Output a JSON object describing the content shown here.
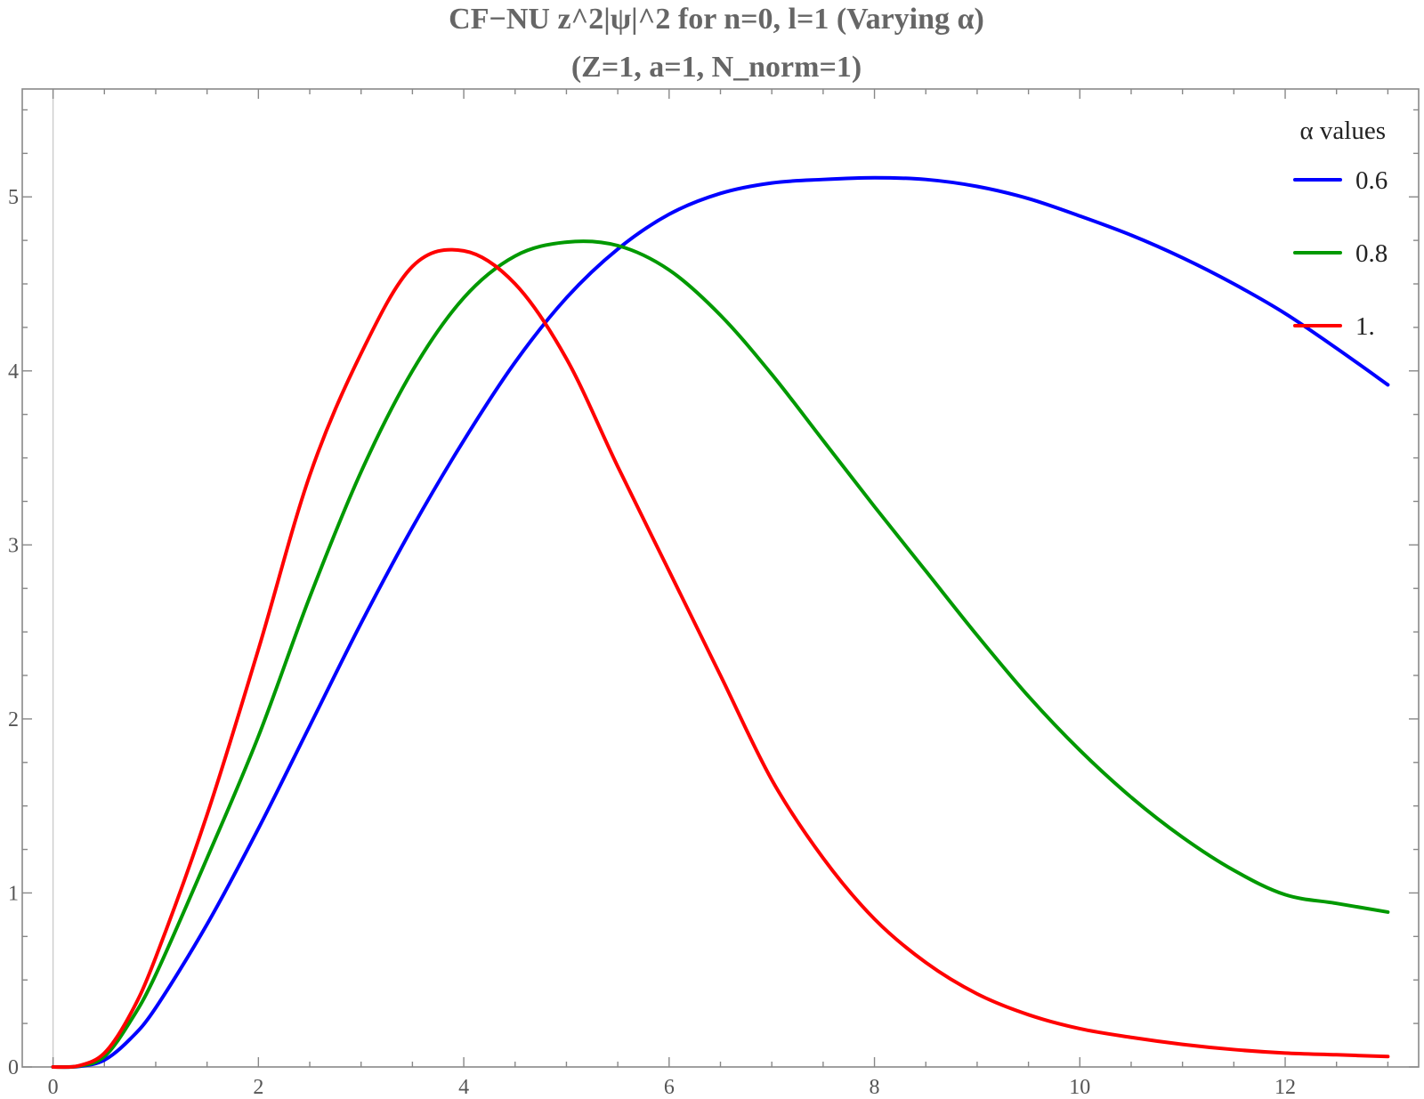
{
  "chart_data": {
    "type": "line",
    "title": "CF−NU z^2|ψ|^2 for n=0, l=1 (Varying α)",
    "subtitle": "(Z=1, a=1, N_norm=1)",
    "xlabel": "",
    "ylabel": "",
    "xlim": [
      -0.3,
      13.3
    ],
    "ylim": [
      0,
      5.62
    ],
    "x_ticks": [
      0,
      2,
      4,
      6,
      8,
      10,
      12
    ],
    "x_tick_labels": [
      "0",
      "2",
      "4",
      "6",
      "8",
      "10",
      "12"
    ],
    "x_minor_step": 0.5,
    "y_ticks": [
      0,
      1,
      2,
      3,
      4,
      5
    ],
    "y_tick_labels": [
      "0",
      "1",
      "2",
      "3",
      "4",
      "5"
    ],
    "y_minor_step": 0.25,
    "grid": false,
    "frame": true,
    "legend": {
      "title": "α values",
      "placement": "top-right"
    },
    "series": [
      {
        "name": "0.6",
        "color": "#0000ff",
        "x": [
          0,
          0.25,
          0.5,
          0.75,
          1,
          1.5,
          2,
          2.5,
          3,
          3.5,
          4,
          4.5,
          5,
          5.5,
          6,
          6.5,
          7,
          7.5,
          8,
          8.5,
          9,
          9.5,
          10,
          10.5,
          11,
          11.5,
          12,
          12.5,
          13
        ],
        "y": [
          0,
          0.003,
          0.04,
          0.16,
          0.34,
          0.82,
          1.37,
          1.96,
          2.55,
          3.1,
          3.6,
          4.05,
          4.42,
          4.7,
          4.9,
          5.02,
          5.08,
          5.1,
          5.11,
          5.1,
          5.06,
          4.99,
          4.89,
          4.78,
          4.65,
          4.5,
          4.33,
          4.13,
          3.92
        ]
      },
      {
        "name": "0.8",
        "color": "#009900",
        "x": [
          0,
          0.25,
          0.5,
          0.75,
          1,
          1.5,
          2,
          2.5,
          3,
          3.5,
          4,
          4.5,
          5,
          5.5,
          6,
          6.5,
          7,
          7.5,
          8,
          8.5,
          9,
          9.5,
          10,
          10.5,
          11,
          11.5,
          12,
          12.5,
          13
        ],
        "y": [
          0,
          0.005,
          0.06,
          0.26,
          0.53,
          1.2,
          1.9,
          2.7,
          3.42,
          4.0,
          4.42,
          4.66,
          4.74,
          4.72,
          4.58,
          4.32,
          3.98,
          3.6,
          3.22,
          2.85,
          2.48,
          2.13,
          1.82,
          1.55,
          1.32,
          1.13,
          0.99,
          0.94,
          0.89
        ]
      },
      {
        "name": "1.",
        "color": "#ff0000",
        "x": [
          0,
          0.25,
          0.5,
          0.75,
          1,
          1.5,
          2,
          2.5,
          3,
          3.5,
          4,
          4.5,
          5,
          5.5,
          6,
          6.5,
          7,
          7.5,
          8,
          8.5,
          9,
          9.5,
          10,
          10.5,
          11,
          11.5,
          12,
          12.5,
          13
        ],
        "y": [
          0,
          0.007,
          0.08,
          0.3,
          0.63,
          1.45,
          2.4,
          3.4,
          4.1,
          4.6,
          4.69,
          4.5,
          4.07,
          3.45,
          2.85,
          2.25,
          1.65,
          1.2,
          0.85,
          0.6,
          0.42,
          0.3,
          0.22,
          0.17,
          0.13,
          0.1,
          0.08,
          0.07,
          0.06
        ]
      }
    ]
  }
}
